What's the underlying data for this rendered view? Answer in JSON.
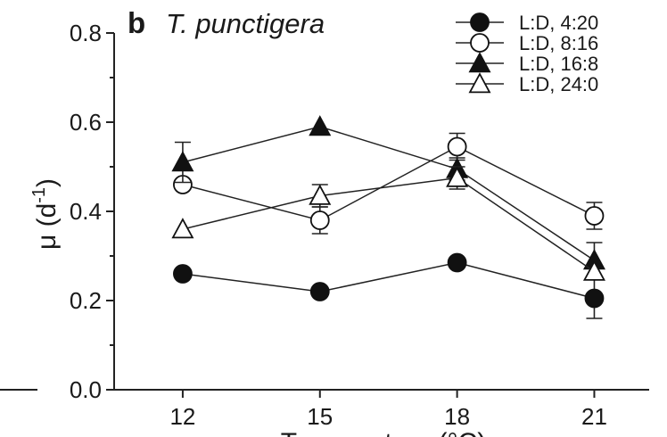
{
  "chart_data": {
    "type": "line",
    "panel_letter": "b",
    "title": "T. punctigera",
    "xlabel": "Temperature (°C)",
    "ylabel": "μ (d⁻¹)",
    "ylabel_main": "μ (d",
    "ylabel_exp": "-1",
    "ylabel_close": ")",
    "x": [
      12,
      15,
      18,
      21
    ],
    "x_tick_labels": [
      "12",
      "15",
      "18",
      "21"
    ],
    "xlim": [
      10.5,
      22.2
    ],
    "ylim": [
      0.0,
      0.8
    ],
    "y_ticks": [
      0.0,
      0.2,
      0.4,
      0.6,
      0.8
    ],
    "y_tick_labels": [
      "0.0",
      "0.2",
      "0.4",
      "0.6",
      "0.8"
    ],
    "grid": false,
    "legend_position": "top-right",
    "series": [
      {
        "name": "L:D, 4:20",
        "marker": "circle-filled",
        "values": [
          0.26,
          0.22,
          0.285,
          0.205
        ],
        "errors": [
          0.0,
          0.0,
          0.0,
          0.045
        ]
      },
      {
        "name": "L:D, 8:16",
        "marker": "circle-open",
        "values": [
          0.46,
          0.38,
          0.545,
          0.39
        ],
        "errors": [
          0.0,
          0.03,
          0.03,
          0.03
        ]
      },
      {
        "name": "L:D, 16:8",
        "marker": "triangle-filled",
        "values": [
          0.51,
          0.59,
          0.495,
          0.29
        ],
        "errors": [
          0.045,
          0.0,
          0.025,
          0.04
        ]
      },
      {
        "name": "L:D, 24:0",
        "marker": "triangle-open",
        "values": [
          0.36,
          0.435,
          0.475,
          0.265
        ],
        "errors": [
          0.0,
          0.025,
          0.025,
          0.0
        ]
      }
    ]
  }
}
